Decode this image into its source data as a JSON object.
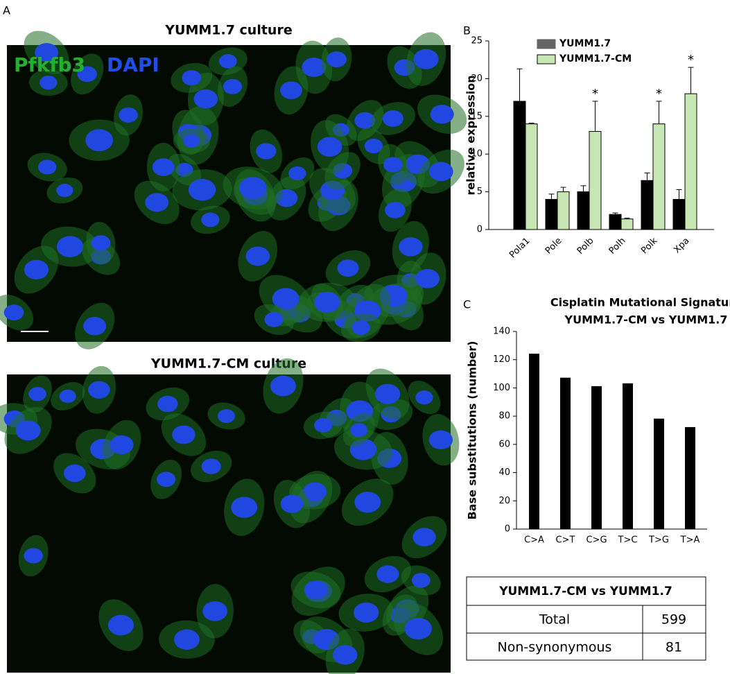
{
  "panel_a": {
    "label": "A",
    "stain_labels": [
      "Pfkfb3",
      "DAPI"
    ],
    "images": [
      {
        "title": "YUMM1.7 culture"
      },
      {
        "title": "YUMM1.7-CM culture"
      }
    ]
  },
  "chart_data": [
    {
      "type": "bar",
      "panel_label": "B",
      "y_label": "relative expression",
      "categories": [
        "Pola1",
        "Pole",
        "Polb",
        "Polh",
        "Polk",
        "Xpa"
      ],
      "series": [
        {
          "name": "YUMM1.7",
          "color": "#000000",
          "values": [
            17,
            4,
            5,
            2,
            6.5,
            4
          ],
          "errors": [
            4.3,
            0.7,
            0.8,
            0.2,
            1,
            1.3
          ]
        },
        {
          "name": "YUMM1.7-CM",
          "color": "#c6e7b4",
          "values": [
            14,
            5,
            13,
            1.4,
            14,
            18
          ],
          "errors": [
            0.1,
            0.6,
            4,
            0.1,
            3,
            3.5
          ],
          "annotations": [
            null,
            null,
            "*",
            null,
            "*",
            "*"
          ]
        }
      ],
      "ylim": [
        0,
        25
      ],
      "yticks": [
        0,
        5,
        10,
        15,
        20,
        25
      ],
      "legend": "upper-left"
    },
    {
      "type": "bar",
      "panel_label": "C",
      "title": "Cisplatin Mutational Signature",
      "subtitle": "YUMM1.7-CM vs YUMM1.7",
      "y_label": "Base substitutions (number)",
      "categories": [
        "C>A",
        "C>T",
        "C>G",
        "T>C",
        "T>G",
        "T>A"
      ],
      "values": [
        124,
        107,
        101,
        103,
        78,
        72
      ],
      "color": "#000000",
      "ylim": [
        0,
        140
      ],
      "yticks": [
        0,
        20,
        40,
        60,
        80,
        100,
        120,
        140
      ]
    }
  ],
  "table": {
    "header": "YUMM1.7-CM vs YUMM1.7",
    "rows": [
      [
        "Total",
        599
      ],
      [
        "Non-synonymous",
        81
      ]
    ]
  }
}
